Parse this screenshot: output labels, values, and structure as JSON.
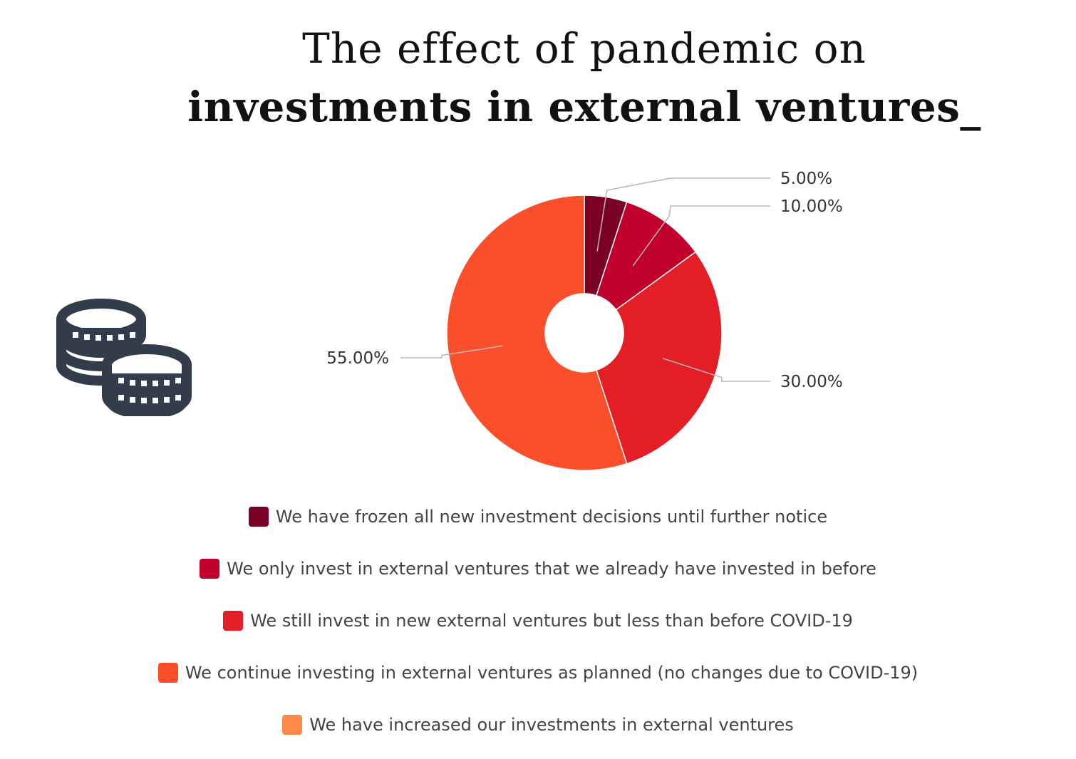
{
  "title": {
    "line1": "The effect of pandemic on",
    "line2": "investments in external ventures_"
  },
  "decor": {
    "icon": "coins-stack-icon",
    "icon_color": "#333c4a"
  },
  "chart_data": {
    "type": "pie",
    "donut": true,
    "categories": [
      "We have frozen all new investment decisions until further notice",
      "We only invest in external ventures that we already have invested in before",
      "We still invest in new external ventures but less than before COVID-19",
      "We continue investing in external ventures as planned (no changes due to COVID-19)",
      "We have increased our investments in external ventures"
    ],
    "values": [
      5,
      10,
      30,
      55,
      0
    ],
    "data_labels": [
      "5.00%",
      "10.00%",
      "30.00%",
      "55.00%",
      ""
    ],
    "colors": [
      "#7a0026",
      "#c0002b",
      "#e31e24",
      "#fb4f2c",
      "#fd8a47"
    ],
    "legend_position": "bottom",
    "grid": false
  }
}
